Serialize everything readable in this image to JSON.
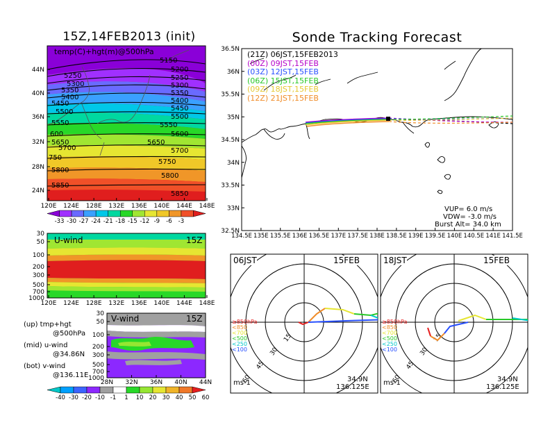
{
  "titles": {
    "left": "15Z,14FEB2013 (init)",
    "right": "Sonde Tracking Forecast"
  },
  "map500": {
    "label": "temp(C)+hgt(m)@500hPa",
    "lat_ticks": [
      "44N",
      "40N",
      "36N",
      "32N",
      "28N",
      "24N"
    ],
    "lon_ticks": [
      "120E",
      "124E",
      "128E",
      "132E",
      "136E",
      "140E",
      "144E",
      "148E"
    ],
    "contour_labels_left": [
      "5250",
      "5300",
      "5350",
      "5400",
      "5450",
      "5500",
      "5550",
      "600",
      "5650",
      "5700",
      "750",
      "5800",
      "5850"
    ],
    "contour_labels_right": [
      "5150",
      "5200",
      "5250",
      "5300",
      "5350",
      "5400",
      "5450",
      "5500",
      "5550",
      "5600",
      "5650",
      "5700",
      "5750",
      "5800",
      "5850"
    ],
    "colorbar_labels": [
      "-33",
      "-30",
      "-27",
      "-24",
      "-21",
      "-18",
      "-15",
      "-12",
      "-9",
      "-6",
      "-3"
    ],
    "colors": [
      "#8a00d8",
      "#a030ff",
      "#6a6aff",
      "#3aa0ff",
      "#00c8e8",
      "#00d8a0",
      "#28d828",
      "#a0e632",
      "#e6e632",
      "#f0c828",
      "#f09628",
      "#f05028",
      "#e01e1e"
    ]
  },
  "uwind": {
    "label": "U-wind",
    "time": "15Z",
    "p_ticks": [
      "30",
      "50",
      "100",
      "200",
      "300",
      "500",
      "700",
      "1000"
    ],
    "lon_ticks": [
      "120E",
      "124E",
      "128E",
      "132E",
      "136E",
      "140E",
      "144E",
      "148E"
    ]
  },
  "vwind": {
    "label": "V-wind",
    "time": "15Z",
    "p_ticks": [
      "30",
      "50",
      "100",
      "200",
      "300",
      "500",
      "700",
      "1000"
    ],
    "lat_ticks": [
      "28N",
      "32N",
      "36N",
      "40N",
      "44N"
    ],
    "colorbar_labels": [
      "-40",
      "-30",
      "-20",
      "-10",
      "-1",
      "1",
      "10",
      "20",
      "30",
      "40",
      "50",
      "60"
    ],
    "colors": [
      "#00c8c8",
      "#00a0ff",
      "#3c64ff",
      "#8c28ff",
      "#a0a0a0",
      "#ffffff",
      "#28d828",
      "#96e632",
      "#e6e632",
      "#f0b428",
      "#f07828",
      "#e61e1e"
    ]
  },
  "legend_text": {
    "up": "(up) tmp+hgt",
    "up2": "@500hPa",
    "mid": "(mid) u-wind",
    "mid2": "@34.86N",
    "bot": "(bot) v-wind",
    "bot2": "@136.11E"
  },
  "track": {
    "lat_ticks": [
      "36.5N",
      "36N",
      "35.5N",
      "35N",
      "34.5N",
      "34N",
      "33.5N",
      "33N",
      "32.5N"
    ],
    "lon_ticks": [
      "134.5E",
      "135E",
      "135.5E",
      "136E",
      "136.5E",
      "137E",
      "137.5E",
      "138E",
      "138.5E",
      "139E",
      "139.5E",
      "140E",
      "140.5E",
      "141E",
      "141.5E"
    ],
    "legend": [
      {
        "text": "(21Z)  06JST,15FEB2013",
        "color": "#000000"
      },
      {
        "text": "(00Z)  09JST,15FEB",
        "color": "#b400c8"
      },
      {
        "text": "(03Z)  12JST,15FEB",
        "color": "#2850ff"
      },
      {
        "text": "(06Z)  15JST,15FEB",
        "color": "#28c828"
      },
      {
        "text": "(09Z)  18JST,15FEB",
        "color": "#e6c832"
      },
      {
        "text": "(12Z)  21JST,15FEB",
        "color": "#f08c28"
      }
    ],
    "params": {
      "vup": "VUP=  6.0  m/s",
      "vdw": "VDW=  -3.0  m/s",
      "burst": "Burst  Alt=  34.0  km"
    }
  },
  "polar": [
    {
      "time": "06JST",
      "date": "15FEB",
      "ring_labels": [
        "15",
        "30",
        "45",
        "60"
      ],
      "levels": [
        {
          "text": "≥850hPa",
          "color": "#e61e1e"
        },
        {
          "text": "<850",
          "color": "#f08c28"
        },
        {
          "text": "<700",
          "color": "#e6e632"
        },
        {
          "text": "<500",
          "color": "#28c828"
        },
        {
          "text": "<250",
          "color": "#00c8c8"
        },
        {
          "text": "<100",
          "color": "#2850ff"
        }
      ],
      "units": "ms-1",
      "lat": "34.9N",
      "lon": "136.125E"
    },
    {
      "time": "18JST",
      "date": "15FEB",
      "ring_labels": [
        "15",
        "30",
        "45",
        "60"
      ],
      "levels": [
        {
          "text": "≥850hPa",
          "color": "#e61e1e"
        },
        {
          "text": "<850",
          "color": "#f08c28"
        },
        {
          "text": "<700",
          "color": "#e6e632"
        },
        {
          "text": "<500",
          "color": "#28c828"
        },
        {
          "text": "<250",
          "color": "#00c8c8"
        },
        {
          "text": "<100",
          "color": "#2850ff"
        }
      ],
      "units": "ms-1",
      "lat": "34.9N",
      "lon": "136.125E"
    }
  ]
}
